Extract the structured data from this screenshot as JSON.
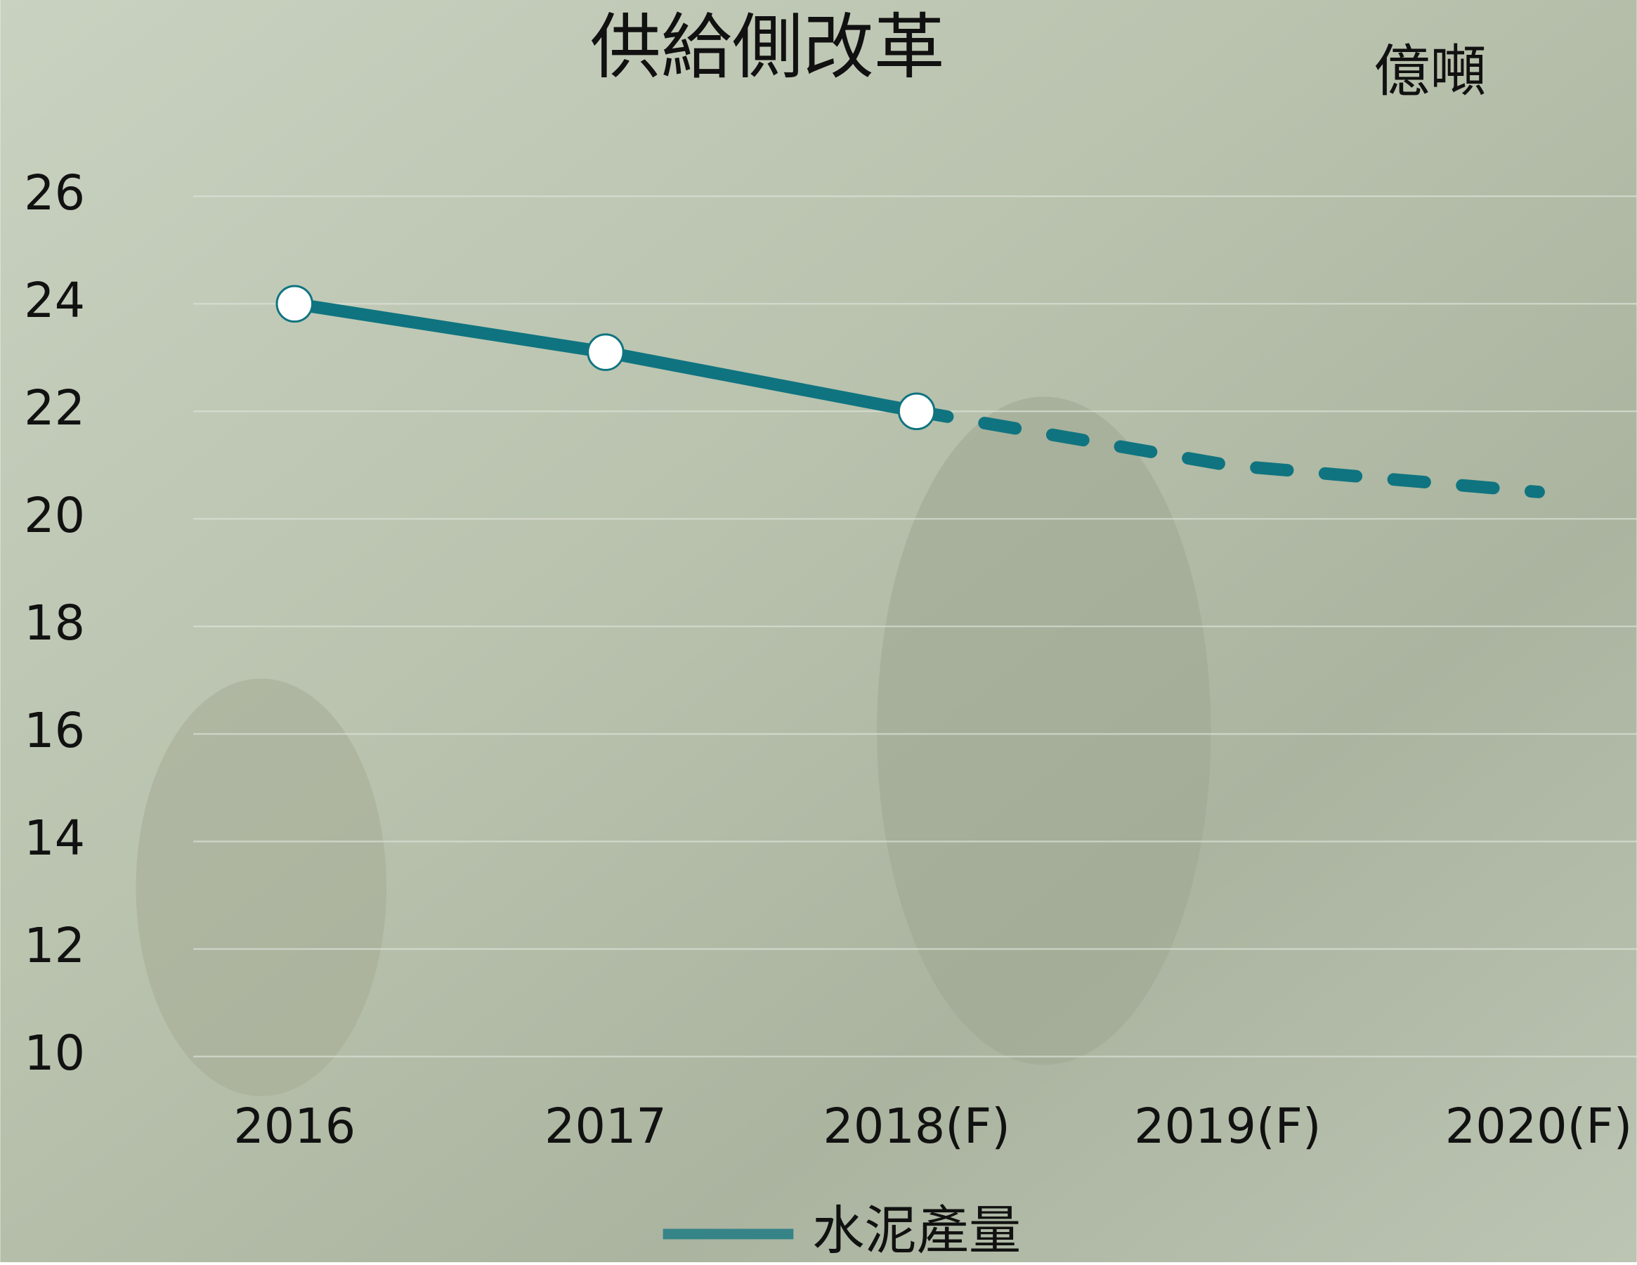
{
  "chart_data": {
    "type": "line",
    "title": "供給側改革",
    "unit_label": "億噸",
    "categories": [
      "2016",
      "2017",
      "2018(F)",
      "2019(F)",
      "2020(F)"
    ],
    "series": [
      {
        "name": "水泥產量",
        "color": "#0f7480",
        "values": [
          24,
          23.1,
          22,
          21,
          20.5
        ],
        "markers": [
          true,
          true,
          true,
          false,
          false
        ],
        "dashed_from": 2
      }
    ],
    "ylim": [
      10,
      26
    ],
    "yticks": [
      10,
      12,
      14,
      16,
      18,
      20,
      22,
      24,
      26
    ],
    "grid": true
  }
}
